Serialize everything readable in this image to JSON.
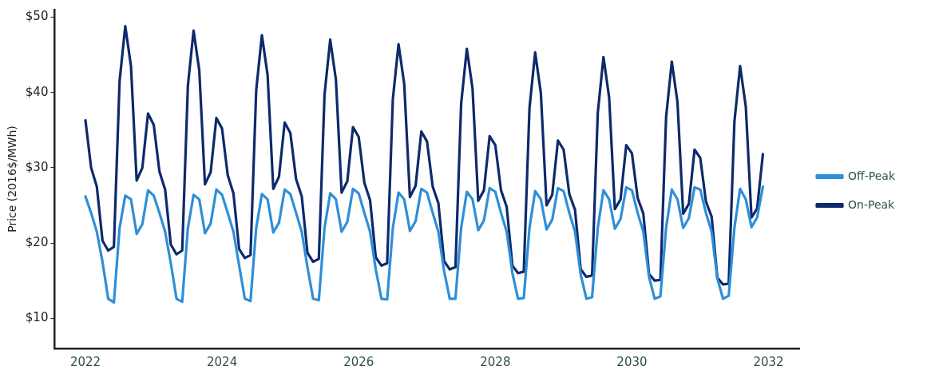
{
  "chart_data": {
    "type": "line",
    "ylabel": "Price (2016$/MWh)",
    "x": [
      "2022-01",
      "2022-02",
      "2022-03",
      "2022-04",
      "2022-05",
      "2022-06",
      "2022-07",
      "2022-08",
      "2022-09",
      "2022-10",
      "2022-11",
      "2022-12",
      "2023-01",
      "2023-02",
      "2023-03",
      "2023-04",
      "2023-05",
      "2023-06",
      "2023-07",
      "2023-08",
      "2023-09",
      "2023-10",
      "2023-11",
      "2023-12",
      "2024-01",
      "2024-02",
      "2024-03",
      "2024-04",
      "2024-05",
      "2024-06",
      "2024-07",
      "2024-08",
      "2024-09",
      "2024-10",
      "2024-11",
      "2024-12",
      "2025-01",
      "2025-02",
      "2025-03",
      "2025-04",
      "2025-05",
      "2025-06",
      "2025-07",
      "2025-08",
      "2025-09",
      "2025-10",
      "2025-11",
      "2025-12",
      "2026-01",
      "2026-02",
      "2026-03",
      "2026-04",
      "2026-05",
      "2026-06",
      "2026-07",
      "2026-08",
      "2026-09",
      "2026-10",
      "2026-11",
      "2026-12",
      "2027-01",
      "2027-02",
      "2027-03",
      "2027-04",
      "2027-05",
      "2027-06",
      "2027-07",
      "2027-08",
      "2027-09",
      "2027-10",
      "2027-11",
      "2027-12",
      "2028-01",
      "2028-02",
      "2028-03",
      "2028-04",
      "2028-05",
      "2028-06",
      "2028-07",
      "2028-08",
      "2028-09",
      "2028-10",
      "2028-11",
      "2028-12",
      "2029-01",
      "2029-02",
      "2029-03",
      "2029-04",
      "2029-05",
      "2029-06",
      "2029-07",
      "2029-08",
      "2029-09",
      "2029-10",
      "2029-11",
      "2029-12",
      "2030-01",
      "2030-02",
      "2030-03",
      "2030-04",
      "2030-05",
      "2030-06",
      "2030-07",
      "2030-08",
      "2030-09",
      "2030-10",
      "2030-11",
      "2030-12",
      "2031-01",
      "2031-02",
      "2031-03",
      "2031-04",
      "2031-05",
      "2031-06",
      "2031-07",
      "2031-08",
      "2031-09",
      "2031-10",
      "2031-11",
      "2031-12"
    ],
    "series": [
      {
        "name": "Off-Peak",
        "color": "#2e8fd8",
        "values": [
          26.2,
          24.0,
          21.5,
          17.5,
          12.6,
          12.1,
          22.0,
          26.3,
          25.8,
          21.2,
          22.5,
          27.0,
          26.3,
          24.0,
          21.5,
          17.3,
          12.6,
          12.2,
          22.0,
          26.4,
          25.8,
          21.3,
          22.6,
          27.1,
          26.4,
          24.0,
          21.5,
          17.0,
          12.6,
          12.3,
          22.0,
          26.5,
          25.8,
          21.4,
          22.7,
          27.1,
          26.5,
          24.0,
          21.5,
          16.8,
          12.6,
          12.4,
          22.0,
          26.6,
          25.8,
          21.5,
          22.8,
          27.2,
          26.6,
          24.0,
          21.5,
          16.5,
          12.6,
          12.5,
          22.0,
          26.7,
          25.8,
          21.6,
          22.9,
          27.2,
          26.7,
          24.0,
          21.5,
          16.3,
          12.6,
          12.6,
          22.0,
          26.8,
          25.8,
          21.7,
          23.0,
          27.3,
          26.8,
          24.0,
          21.5,
          16.0,
          12.6,
          12.7,
          22.0,
          26.9,
          25.8,
          21.8,
          23.1,
          27.3,
          26.9,
          24.0,
          21.5,
          15.8,
          12.6,
          12.8,
          22.0,
          27.0,
          25.8,
          21.9,
          23.2,
          27.4,
          27.0,
          24.0,
          21.5,
          15.5,
          12.6,
          12.9,
          22.0,
          27.1,
          25.8,
          22.0,
          23.3,
          27.4,
          27.1,
          24.0,
          21.5,
          15.3,
          12.6,
          13.0,
          22.0,
          27.2,
          25.8,
          22.1,
          23.4,
          27.5
        ]
      },
      {
        "name": "On-Peak",
        "color": "#0d2a6b",
        "values": [
          36.3,
          30.0,
          27.5,
          20.3,
          19.0,
          19.5,
          41.5,
          48.8,
          43.5,
          28.3,
          30.0,
          37.2,
          35.7,
          29.5,
          27.1,
          19.8,
          18.5,
          19.0,
          40.9,
          48.2,
          42.9,
          27.8,
          29.4,
          36.6,
          35.2,
          29.0,
          26.6,
          19.2,
          18.0,
          18.4,
          40.3,
          47.6,
          42.3,
          27.2,
          28.8,
          36.0,
          34.6,
          28.5,
          26.2,
          18.7,
          17.5,
          17.9,
          39.7,
          47.0,
          41.7,
          26.7,
          28.2,
          35.4,
          34.1,
          28.0,
          25.7,
          18.1,
          17.0,
          17.3,
          39.1,
          46.4,
          41.1,
          26.1,
          27.6,
          34.8,
          33.5,
          27.5,
          25.3,
          17.6,
          16.5,
          16.8,
          38.5,
          45.8,
          40.5,
          25.6,
          27.0,
          34.2,
          33.0,
          27.0,
          24.8,
          17.0,
          16.0,
          16.2,
          37.9,
          45.3,
          39.9,
          25.0,
          26.4,
          33.6,
          32.4,
          26.5,
          24.4,
          16.5,
          15.5,
          15.7,
          37.3,
          44.7,
          39.3,
          24.5,
          25.8,
          33.0,
          31.9,
          26.0,
          23.9,
          15.9,
          15.0,
          15.1,
          36.7,
          44.1,
          38.7,
          23.9,
          25.2,
          32.4,
          31.3,
          25.5,
          23.5,
          15.4,
          14.5,
          14.6,
          36.1,
          43.5,
          38.1,
          23.4,
          24.6,
          31.8
        ]
      }
    ],
    "xlim": [
      "2021-07-19",
      "2032-06-13"
    ],
    "xticks": [
      "2022",
      "2024",
      "2026",
      "2028",
      "2030",
      "2032"
    ],
    "ylim": [
      6,
      51
    ],
    "yticks": [
      {
        "value": 10,
        "label": "$10"
      },
      {
        "value": 20,
        "label": "$20"
      },
      {
        "value": 30,
        "label": "$30"
      },
      {
        "value": 40,
        "label": "$40"
      },
      {
        "value": 50,
        "label": "$50"
      }
    ],
    "grid": false,
    "legend": "right",
    "marker": "none",
    "line_style": "solid"
  }
}
